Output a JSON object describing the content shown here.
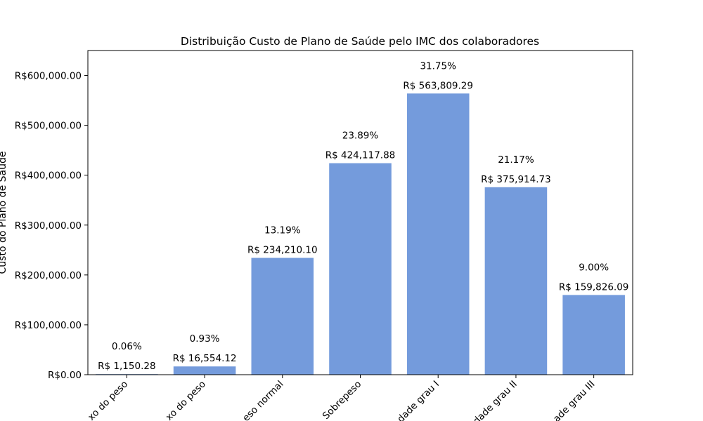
{
  "chart_data": {
    "type": "bar",
    "title": "Distribuição Custo de Plano de Saúde pelo IMC dos colaboradores",
    "xlabel": "",
    "ylabel": "Custo do Plano de Saúde",
    "ylim": [
      0,
      650000
    ],
    "y_ticks": [
      0,
      100000,
      200000,
      300000,
      400000,
      500000,
      600000
    ],
    "y_tick_labels": [
      "R$0.00",
      "R$100,000.00",
      "R$200,000.00",
      "R$300,000.00",
      "R$400,000.00",
      "R$500,000.00",
      "R$600,000.00"
    ],
    "grid": false,
    "bar_color": "#749bdc",
    "categories": [
      "Muito abaixo do peso",
      "Abaixo do peso",
      "Peso normal",
      "Sobrepeso",
      "Obesidade grau I",
      "Obesidade grau II",
      "Obesidade grau III"
    ],
    "tick_labels_visible": [
      "xo do peso",
      "xo do peso",
      "eso normal",
      "Sobrepeso",
      "dade grau I",
      "dade grau II",
      "ade grau III"
    ],
    "values": [
      1150.28,
      16554.12,
      234210.1,
      424117.88,
      563809.29,
      375914.73,
      159826.09
    ],
    "value_labels": [
      "R$ 1,150.28",
      "R$ 16,554.12",
      "R$ 234,210.10",
      "R$ 424,117.88",
      "R$ 563,809.29",
      "R$ 375,914.73",
      "R$ 159,826.09"
    ],
    "percent_labels": [
      "0.06%",
      "0.93%",
      "13.19%",
      "23.89%",
      "31.75%",
      "21.17%",
      "9.00%"
    ]
  }
}
